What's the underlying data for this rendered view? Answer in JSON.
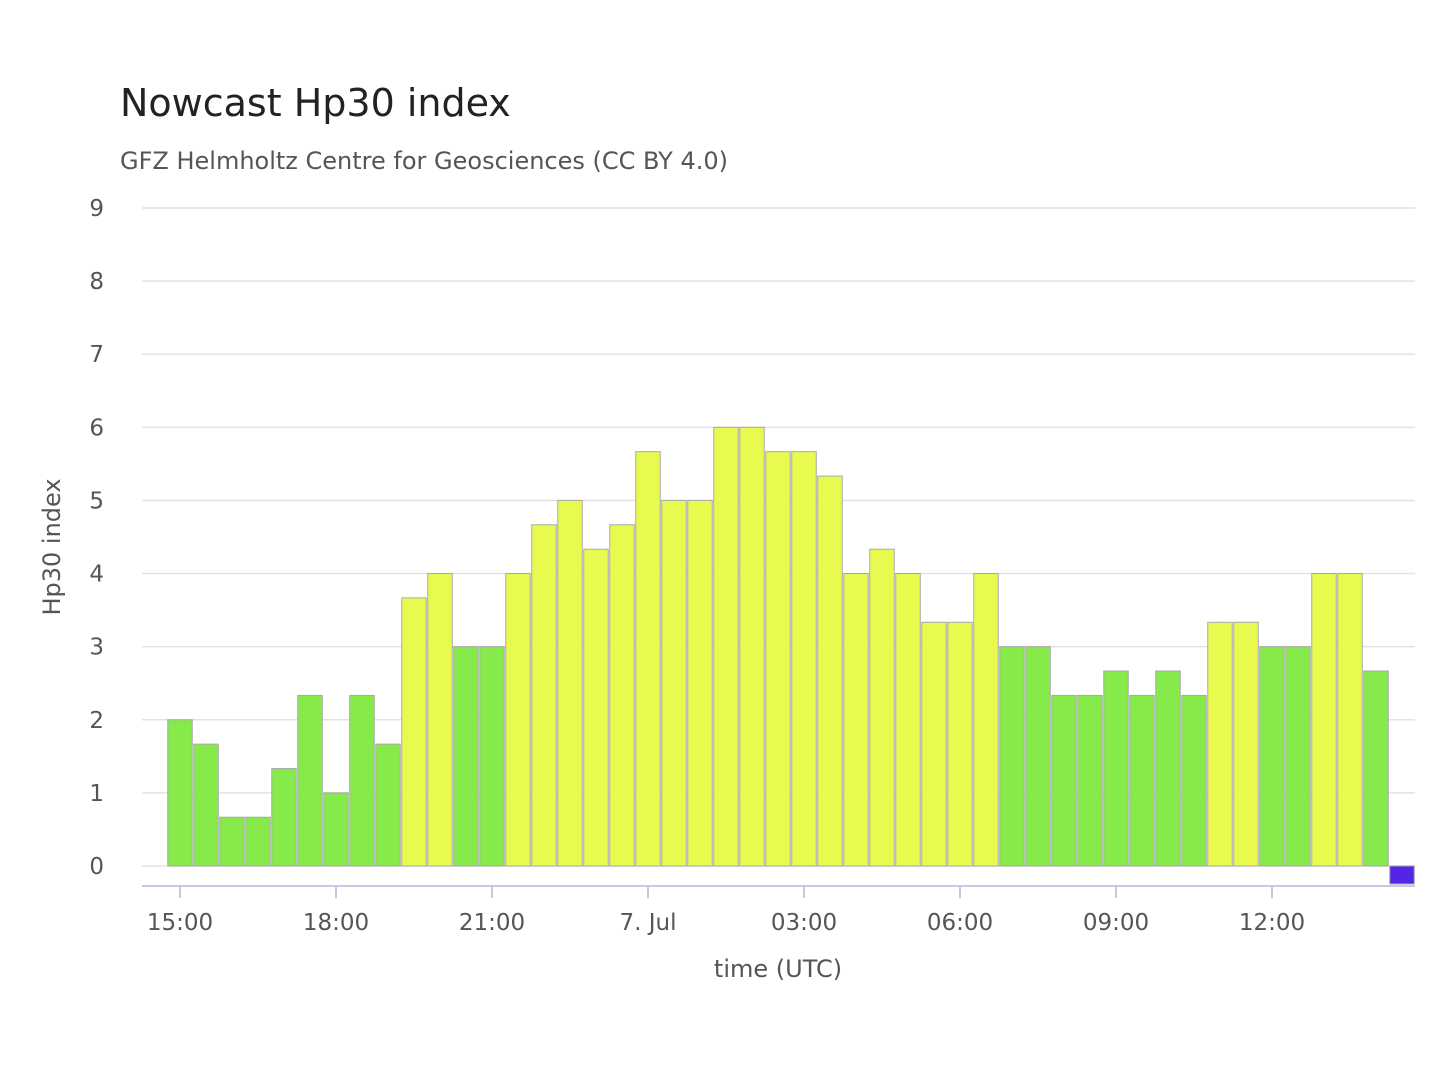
{
  "chart_data": {
    "type": "bar",
    "title": "Nowcast Hp30 index",
    "subtitle": "GFZ Helmholtz Centre for Geosciences (CC BY 4.0)",
    "xlabel": "time (UTC)",
    "ylabel": "Hp30 index",
    "ylim": [
      0,
      9
    ],
    "yticks": [
      "0",
      "1",
      "2",
      "3",
      "4",
      "5",
      "6",
      "7",
      "8",
      "9"
    ],
    "xticks": [
      "15:00",
      "18:00",
      "21:00",
      "7. Jul",
      "03:00",
      "06:00",
      "09:00",
      "12:00"
    ],
    "grid": true,
    "interval_hours": 0.5,
    "first_bar_hours_after_first_tick": 0,
    "colors": {
      "quiet": "#86ea4a",
      "minor": "#e8fa4e",
      "nowcast": "#5525e6"
    },
    "values": [
      2.0,
      1.667,
      0.667,
      0.667,
      1.333,
      2.333,
      1.0,
      2.333,
      1.667,
      3.667,
      4.0,
      3.0,
      3.0,
      4.0,
      4.667,
      5.0,
      4.333,
      4.667,
      5.667,
      5.0,
      5.0,
      6.0,
      6.0,
      5.667,
      5.667,
      5.333,
      4.0,
      4.333,
      4.0,
      3.333,
      3.333,
      4.0,
      3.0,
      3.0,
      2.333,
      2.333,
      2.667,
      2.333,
      2.667,
      2.333,
      3.333,
      3.333,
      3.0,
      3.0,
      4.0,
      4.0,
      2.667,
      0.0
    ],
    "bar_colors": [
      "quiet",
      "quiet",
      "quiet",
      "quiet",
      "quiet",
      "quiet",
      "quiet",
      "quiet",
      "quiet",
      "minor",
      "minor",
      "quiet",
      "quiet",
      "minor",
      "minor",
      "minor",
      "minor",
      "minor",
      "minor",
      "minor",
      "minor",
      "minor",
      "minor",
      "minor",
      "minor",
      "minor",
      "minor",
      "minor",
      "minor",
      "minor",
      "minor",
      "minor",
      "quiet",
      "quiet",
      "quiet",
      "quiet",
      "quiet",
      "quiet",
      "quiet",
      "quiet",
      "minor",
      "minor",
      "quiet",
      "quiet",
      "minor",
      "minor",
      "quiet",
      "nowcast"
    ]
  }
}
